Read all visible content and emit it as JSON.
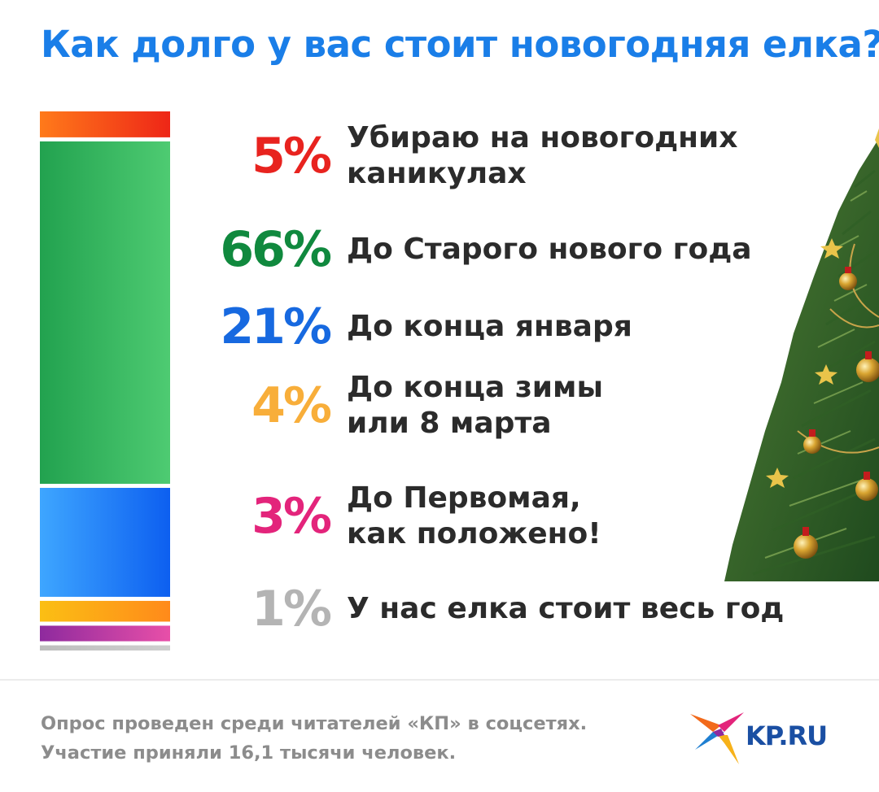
{
  "title": "Как долго у вас стоит новогодняя елка?",
  "chart_data": {
    "type": "bar",
    "stacked": true,
    "orientation": "vertical",
    "title": "Как долго у вас стоит новогодняя елка?",
    "unit": "%",
    "categories": [
      "Убираю на новогодних каникулах",
      "До Старого нового года",
      "До конца января",
      "До конца зимы или 8 марта",
      "До Первомая, как положено!",
      "У нас елка стоит весь год"
    ],
    "values": [
      5,
      66,
      21,
      4,
      3,
      1
    ],
    "items": [
      {
        "pct": "5%",
        "lines": [
          "Убираю на новогодних",
          "каникулах"
        ],
        "color": "#e8231f",
        "fill_from": "#ff7a1a",
        "fill_to": "#ee2617"
      },
      {
        "pct": "66%",
        "lines": [
          "До Старого нового года"
        ],
        "color": "#10893e",
        "fill_from": "#22a24f",
        "fill_to": "#4ecb72"
      },
      {
        "pct": "21%",
        "lines": [
          "До конца января"
        ],
        "color": "#1769e0",
        "fill_from": "#3ea6ff",
        "fill_to": "#0d5ff0"
      },
      {
        "pct": "4%",
        "lines": [
          "До конца зимы",
          "или 8 марта"
        ],
        "color": "#f8ae3a",
        "fill_from": "#fbbf14",
        "fill_to": "#ff8a1a"
      },
      {
        "pct": "3%",
        "lines": [
          "До Первомая,",
          "как положено!"
        ],
        "color": "#e3247b",
        "fill_from": "#8e2a9e",
        "fill_to": "#e84fa8"
      },
      {
        "pct": "1%",
        "lines": [
          "У нас елка стоит весь год"
        ],
        "color": "#b4b4b4",
        "fill_from": "#bdbdbd",
        "fill_to": "#cfcfcf"
      }
    ]
  },
  "footer": {
    "line1": "Опрос проведен среди читателей «КП» в соцсетях.",
    "line2": "Участие приняли 16,1 тысячи человек."
  },
  "logo": {
    "text": "KP.RU",
    "icon": "kp-bird-logo-icon",
    "color": "#1a4fa3"
  },
  "decor": {
    "tree": "christmas-tree-icon"
  }
}
